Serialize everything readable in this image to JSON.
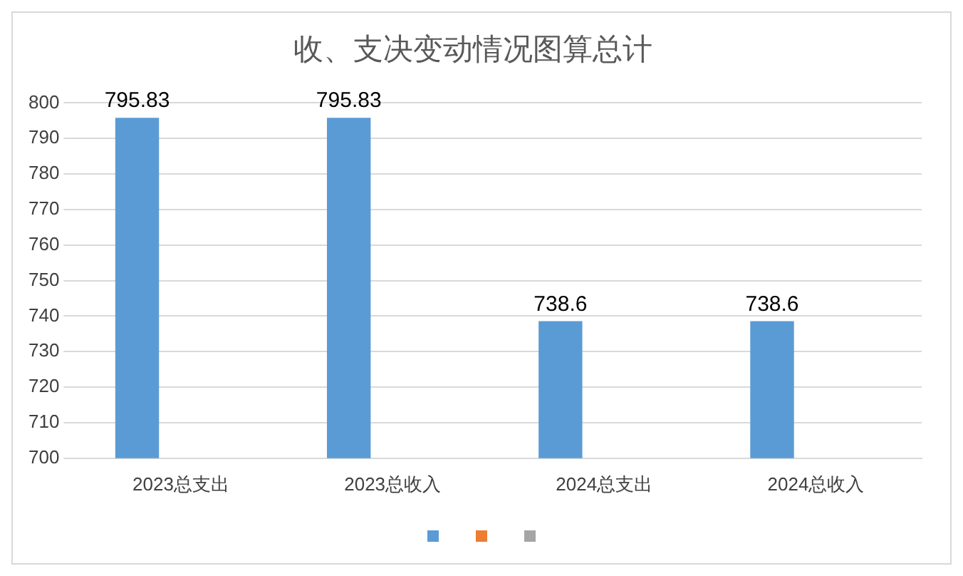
{
  "chart_data": {
    "type": "bar",
    "title": "收、支决变动情况图算总计",
    "categories": [
      "2023总支出",
      "2023总收入",
      "2024总支出",
      "2024总收入"
    ],
    "series": [
      {
        "color": "#5b9bd5",
        "values": [
          795.83,
          795.83,
          738.6,
          738.6
        ]
      },
      {
        "color": "#ed7d31",
        "values": [
          null,
          null,
          null,
          null
        ]
      },
      {
        "color": "#a5a5a5",
        "values": [
          null,
          null,
          null,
          null
        ]
      }
    ],
    "ylim": [
      700,
      800
    ],
    "yticks": [
      700,
      710,
      720,
      730,
      740,
      750,
      760,
      770,
      780,
      790,
      800
    ],
    "grid": "y",
    "data_labels": true
  }
}
